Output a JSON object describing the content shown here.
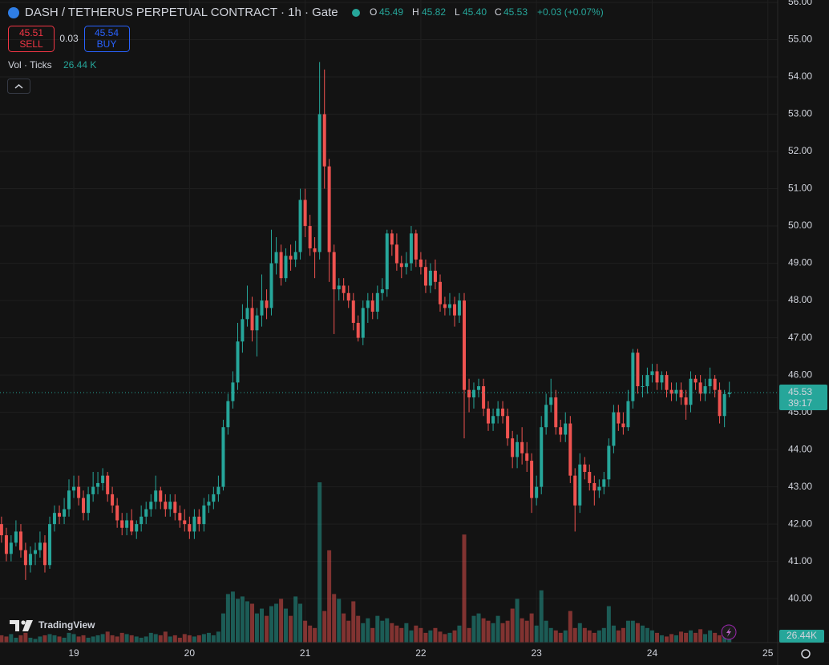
{
  "header": {
    "title": "DASH / TETHERUS PERPETUAL CONTRACT · 1h · Gate",
    "ohlc": [
      {
        "label": "O",
        "value": "45.49"
      },
      {
        "label": "H",
        "value": "45.82"
      },
      {
        "label": "L",
        "value": "45.40"
      },
      {
        "label": "C",
        "value": "45.53"
      }
    ],
    "change": "+0.03 (+0.07%)",
    "sell": {
      "price": "45.51",
      "label": "SELL"
    },
    "spread": "0.03",
    "buy": {
      "price": "45.54",
      "label": "BUY"
    },
    "volume_legend": {
      "label": "Vol · Ticks",
      "value": "26.44 K"
    },
    "price_tag": {
      "price": "45.53",
      "countdown": "39:17"
    },
    "volume_tag": "26.44K",
    "brand": "TradingView"
  },
  "chart_data": {
    "type": "candlestick",
    "up_color": "#26a69a",
    "down_color": "#ef5350",
    "grid": true,
    "xlim": [
      18.362,
      25.085
    ],
    "xticks": [
      19,
      20,
      21,
      22,
      23,
      24,
      25
    ],
    "ylim": [
      38.82,
      56.065
    ],
    "yticks": [
      {
        "value": 40,
        "label": "40.00"
      },
      {
        "value": 41,
        "label": "41.00"
      },
      {
        "value": 42,
        "label": "42.00"
      },
      {
        "value": 43,
        "label": "43.00"
      },
      {
        "value": 44,
        "label": "44.00"
      },
      {
        "value": 45,
        "label": "45.00"
      },
      {
        "value": 46,
        "label": "46.00"
      },
      {
        "value": 47,
        "label": "47.00"
      },
      {
        "value": 48,
        "label": "48.00"
      },
      {
        "value": 49,
        "label": "49.00"
      },
      {
        "value": 50,
        "label": "50.00"
      },
      {
        "value": 51,
        "label": "51.00"
      },
      {
        "value": 52,
        "label": "52.00"
      },
      {
        "value": 53,
        "label": "53.00"
      },
      {
        "value": 54,
        "label": "54.00"
      },
      {
        "value": 55,
        "label": "55.00"
      },
      {
        "value": 56,
        "label": "56.00"
      }
    ],
    "x": [
      18.375,
      18.417,
      18.458,
      18.5,
      18.542,
      18.583,
      18.625,
      18.667,
      18.708,
      18.75,
      18.792,
      18.833,
      18.875,
      18.917,
      18.958,
      19,
      19.042,
      19.083,
      19.125,
      19.167,
      19.208,
      19.25,
      19.292,
      19.333,
      19.375,
      19.417,
      19.458,
      19.5,
      19.542,
      19.583,
      19.625,
      19.667,
      19.708,
      19.75,
      19.792,
      19.833,
      19.875,
      19.917,
      19.958,
      20,
      20.042,
      20.083,
      20.125,
      20.167,
      20.208,
      20.25,
      20.292,
      20.333,
      20.375,
      20.417,
      20.458,
      20.5,
      20.542,
      20.583,
      20.625,
      20.667,
      20.708,
      20.75,
      20.792,
      20.833,
      20.875,
      20.917,
      20.958,
      21,
      21.042,
      21.083,
      21.125,
      21.167,
      21.208,
      21.25,
      21.292,
      21.333,
      21.375,
      21.417,
      21.458,
      21.5,
      21.542,
      21.583,
      21.625,
      21.667,
      21.708,
      21.75,
      21.792,
      21.833,
      21.875,
      21.917,
      21.958,
      22,
      22.042,
      22.083,
      22.125,
      22.167,
      22.208,
      22.25,
      22.292,
      22.333,
      22.375,
      22.417,
      22.458,
      22.5,
      22.542,
      22.583,
      22.625,
      22.667,
      22.708,
      22.75,
      22.792,
      22.833,
      22.875,
      22.917,
      22.958,
      23,
      23.042,
      23.083,
      23.125,
      23.167,
      23.208,
      23.25,
      23.292,
      23.333,
      23.375,
      23.417,
      23.458,
      23.5,
      23.542,
      23.583,
      23.625,
      23.667,
      23.708,
      23.75,
      23.792,
      23.833,
      23.875,
      23.917,
      23.958,
      24,
      24.042,
      24.083,
      24.125,
      24.167,
      24.208,
      24.25,
      24.292,
      24.333,
      24.375,
      24.417,
      24.458,
      24.5,
      24.542,
      24.583,
      24.625,
      24.667
    ],
    "open": [
      42.0,
      41.7,
      41.2,
      41.5,
      41.8,
      41.3,
      40.9,
      41.2,
      41.3,
      41.5,
      40.9,
      42.0,
      42.3,
      42.2,
      42.4,
      42.9,
      43.0,
      42.7,
      42.3,
      42.8,
      43.0,
      43.1,
      43.3,
      42.8,
      42.5,
      42.1,
      41.9,
      42.1,
      41.8,
      42.0,
      42.2,
      42.4,
      42.6,
      42.9,
      42.6,
      42.4,
      42.6,
      42.3,
      42.1,
      42.0,
      41.8,
      42.2,
      42.0,
      42.5,
      42.6,
      42.8,
      43.0,
      44.6,
      45.3,
      45.8,
      46.9,
      47.5,
      47.8,
      47.2,
      47.6,
      48.0,
      47.8,
      49.0,
      49.3,
      48.6,
      49.2,
      49.1,
      49.3,
      50.7,
      50.0,
      49.4,
      49.3,
      53.0,
      51.6,
      49.3,
      48.3,
      48.4,
      48.2,
      48.0,
      47.4,
      47.0,
      47.8,
      48.0,
      47.7,
      48.2,
      48.3,
      49.8,
      49.5,
      49.0,
      48.9,
      49.0,
      49.8,
      49.1,
      48.9,
      48.4,
      48.8,
      48.5,
      47.9,
      47.8,
      47.9,
      47.6,
      48.0,
      45.6,
      45.4,
      45.6,
      45.7,
      45.1,
      44.7,
      44.9,
      45.1,
      44.9,
      44.3,
      43.8,
      44.2,
      43.9,
      43.7,
      42.7,
      43.0,
      44.6,
      45.2,
      45.4,
      44.6,
      44.4,
      44.7,
      43.3,
      42.5,
      43.6,
      43.4,
      43.1,
      42.9,
      43.0,
      43.2,
      44.1,
      45.0,
      44.7,
      44.6,
      45.3,
      46.6,
      45.7,
      45.7,
      46.0,
      46.1,
      45.8,
      46.0,
      45.6,
      45.5,
      45.6,
      45.4,
      45.2,
      45.9,
      45.8,
      45.5,
      45.7,
      45.9,
      45.6,
      44.9,
      45.49
    ],
    "high": [
      42.2,
      41.9,
      41.7,
      42.1,
      42.0,
      41.5,
      41.4,
      41.5,
      41.8,
      41.7,
      42.2,
      42.5,
      42.5,
      42.7,
      43.2,
      43.3,
      43.3,
      42.9,
      43.0,
      43.4,
      43.4,
      43.5,
      43.4,
      43.0,
      42.7,
      42.3,
      42.3,
      42.4,
      42.1,
      42.5,
      42.6,
      42.8,
      43.3,
      43.0,
      42.8,
      42.8,
      42.8,
      42.5,
      42.4,
      42.2,
      42.4,
      42.4,
      42.7,
      42.8,
      43.0,
      43.3,
      44.8,
      45.5,
      46.1,
      47.4,
      47.9,
      48.4,
      48.1,
      47.8,
      48.7,
      48.3,
      49.9,
      49.7,
      49.5,
      49.4,
      49.5,
      49.6,
      51.0,
      51.0,
      50.3,
      49.7,
      54.4,
      54.2,
      51.8,
      49.5,
      48.6,
      48.6,
      48.4,
      48.2,
      47.6,
      48.0,
      48.2,
      48.2,
      48.4,
      48.6,
      49.9,
      49.9,
      49.8,
      49.2,
      49.3,
      50.0,
      49.9,
      49.3,
      49.1,
      49.0,
      49.1,
      48.7,
      48.1,
      48.2,
      48.1,
      48.2,
      48.2,
      45.9,
      45.8,
      45.9,
      45.9,
      45.3,
      45.1,
      45.3,
      45.3,
      45.1,
      44.5,
      44.4,
      44.6,
      44.2,
      43.9,
      43.3,
      44.9,
      45.5,
      45.9,
      45.6,
      44.8,
      45.0,
      44.9,
      43.5,
      43.9,
      43.8,
      43.6,
      43.3,
      43.2,
      43.4,
      44.3,
      45.2,
      45.2,
      45.0,
      45.6,
      46.7,
      46.7,
      46.0,
      46.2,
      46.3,
      46.3,
      46.1,
      46.1,
      45.8,
      45.8,
      45.8,
      45.6,
      46.1,
      46.0,
      46.0,
      45.9,
      46.2,
      46.0,
      45.8,
      45.6,
      45.82
    ],
    "low": [
      41.5,
      41.0,
      41.0,
      41.4,
      41.1,
      40.5,
      40.7,
      40.9,
      41.1,
      40.7,
      40.8,
      41.8,
      42.0,
      42.0,
      42.2,
      42.7,
      42.5,
      42.1,
      42.1,
      42.6,
      42.8,
      42.9,
      42.6,
      42.3,
      41.9,
      41.7,
      41.7,
      41.7,
      41.6,
      41.8,
      42.0,
      42.2,
      42.4,
      42.4,
      42.2,
      42.2,
      42.1,
      41.9,
      41.8,
      41.6,
      41.6,
      41.8,
      41.8,
      42.3,
      42.4,
      42.6,
      42.9,
      44.4,
      45.1,
      45.6,
      46.6,
      47.3,
      46.9,
      46.5,
      47.3,
      47.5,
      47.6,
      48.7,
      48.4,
      48.5,
      48.8,
      48.9,
      49.1,
      49.7,
      49.2,
      48.6,
      49.1,
      51.0,
      48.5,
      47.1,
      48.0,
      48.0,
      47.8,
      47.2,
      46.9,
      46.8,
      47.4,
      47.5,
      47.5,
      48.0,
      48.1,
      49.2,
      48.8,
      48.6,
      48.7,
      48.8,
      48.9,
      48.7,
      48.2,
      48.2,
      48.3,
      47.7,
      47.6,
      47.6,
      47.3,
      47.4,
      44.3,
      45.0,
      45.1,
      45.4,
      44.9,
      44.5,
      44.5,
      44.7,
      44.7,
      44.1,
      43.5,
      43.5,
      43.6,
      43.4,
      42.3,
      42.5,
      42.8,
      44.4,
      45.0,
      44.4,
      44.2,
      44.2,
      43.1,
      41.8,
      42.3,
      43.2,
      42.9,
      42.5,
      42.7,
      42.8,
      43.0,
      43.9,
      44.5,
      44.4,
      44.5,
      45.1,
      45.5,
      45.4,
      45.5,
      45.8,
      45.6,
      45.6,
      45.4,
      45.3,
      45.3,
      45.2,
      44.8,
      45.0,
      45.6,
      45.3,
      45.3,
      45.5,
      45.4,
      44.7,
      44.6,
      45.4
    ],
    "close": [
      41.7,
      41.2,
      41.5,
      41.8,
      41.3,
      40.9,
      41.2,
      41.3,
      41.5,
      40.9,
      42.0,
      42.3,
      42.2,
      42.4,
      42.9,
      43.0,
      42.7,
      42.3,
      42.8,
      43.0,
      43.1,
      43.3,
      42.8,
      42.5,
      42.1,
      41.9,
      42.1,
      41.8,
      42.0,
      42.2,
      42.4,
      42.6,
      42.9,
      42.6,
      42.4,
      42.6,
      42.3,
      42.1,
      42.0,
      41.8,
      42.2,
      42.0,
      42.5,
      42.6,
      42.8,
      43.0,
      44.6,
      45.3,
      45.8,
      46.9,
      47.5,
      47.8,
      47.2,
      47.6,
      48.0,
      47.8,
      49.0,
      49.3,
      48.6,
      49.2,
      49.1,
      49.3,
      50.7,
      50.0,
      49.4,
      49.3,
      53.0,
      51.6,
      49.3,
      48.3,
      48.4,
      48.2,
      48.0,
      47.4,
      47.0,
      47.8,
      48.0,
      47.7,
      48.2,
      48.3,
      49.8,
      49.5,
      49.0,
      48.9,
      49.0,
      49.8,
      49.1,
      48.9,
      48.4,
      48.8,
      48.5,
      47.9,
      47.8,
      47.9,
      47.6,
      48.0,
      45.6,
      45.4,
      45.6,
      45.7,
      45.1,
      44.7,
      44.9,
      45.1,
      44.9,
      44.3,
      43.8,
      44.2,
      43.9,
      43.7,
      42.7,
      43.0,
      44.6,
      45.2,
      45.4,
      44.6,
      44.4,
      44.7,
      43.3,
      42.5,
      43.6,
      43.4,
      43.1,
      42.9,
      43.0,
      43.2,
      44.1,
      45.0,
      44.7,
      44.6,
      45.3,
      46.6,
      45.7,
      45.7,
      46.0,
      46.1,
      45.8,
      46.0,
      45.6,
      45.5,
      45.6,
      45.4,
      45.2,
      45.9,
      45.8,
      45.5,
      45.7,
      45.9,
      45.6,
      44.9,
      45.49,
      45.53
    ],
    "volume": [
      30,
      25,
      35,
      20,
      30,
      40,
      20,
      15,
      25,
      30,
      35,
      30,
      25,
      20,
      40,
      35,
      25,
      30,
      20,
      25,
      30,
      35,
      45,
      30,
      25,
      40,
      35,
      30,
      25,
      20,
      25,
      40,
      35,
      30,
      45,
      25,
      30,
      20,
      35,
      30,
      25,
      30,
      35,
      40,
      30,
      45,
      120,
      200,
      210,
      180,
      190,
      170,
      160,
      120,
      140,
      110,
      150,
      160,
      180,
      140,
      110,
      190,
      160,
      90,
      70,
      60,
      660,
      130,
      380,
      200,
      180,
      120,
      90,
      170,
      110,
      80,
      100,
      60,
      110,
      90,
      100,
      80,
      70,
      60,
      80,
      50,
      70,
      60,
      40,
      50,
      60,
      45,
      35,
      40,
      50,
      70,
      445,
      60,
      110,
      120,
      100,
      90,
      80,
      110,
      80,
      90,
      140,
      180,
      100,
      90,
      120,
      70,
      215,
      90,
      60,
      50,
      40,
      50,
      130,
      60,
      80,
      60,
      50,
      40,
      50,
      60,
      150,
      70,
      50,
      60,
      90,
      90,
      80,
      70,
      60,
      50,
      40,
      30,
      25,
      35,
      30,
      45,
      40,
      50,
      40,
      55,
      35,
      50,
      40,
      30,
      40,
      26.44
    ]
  }
}
